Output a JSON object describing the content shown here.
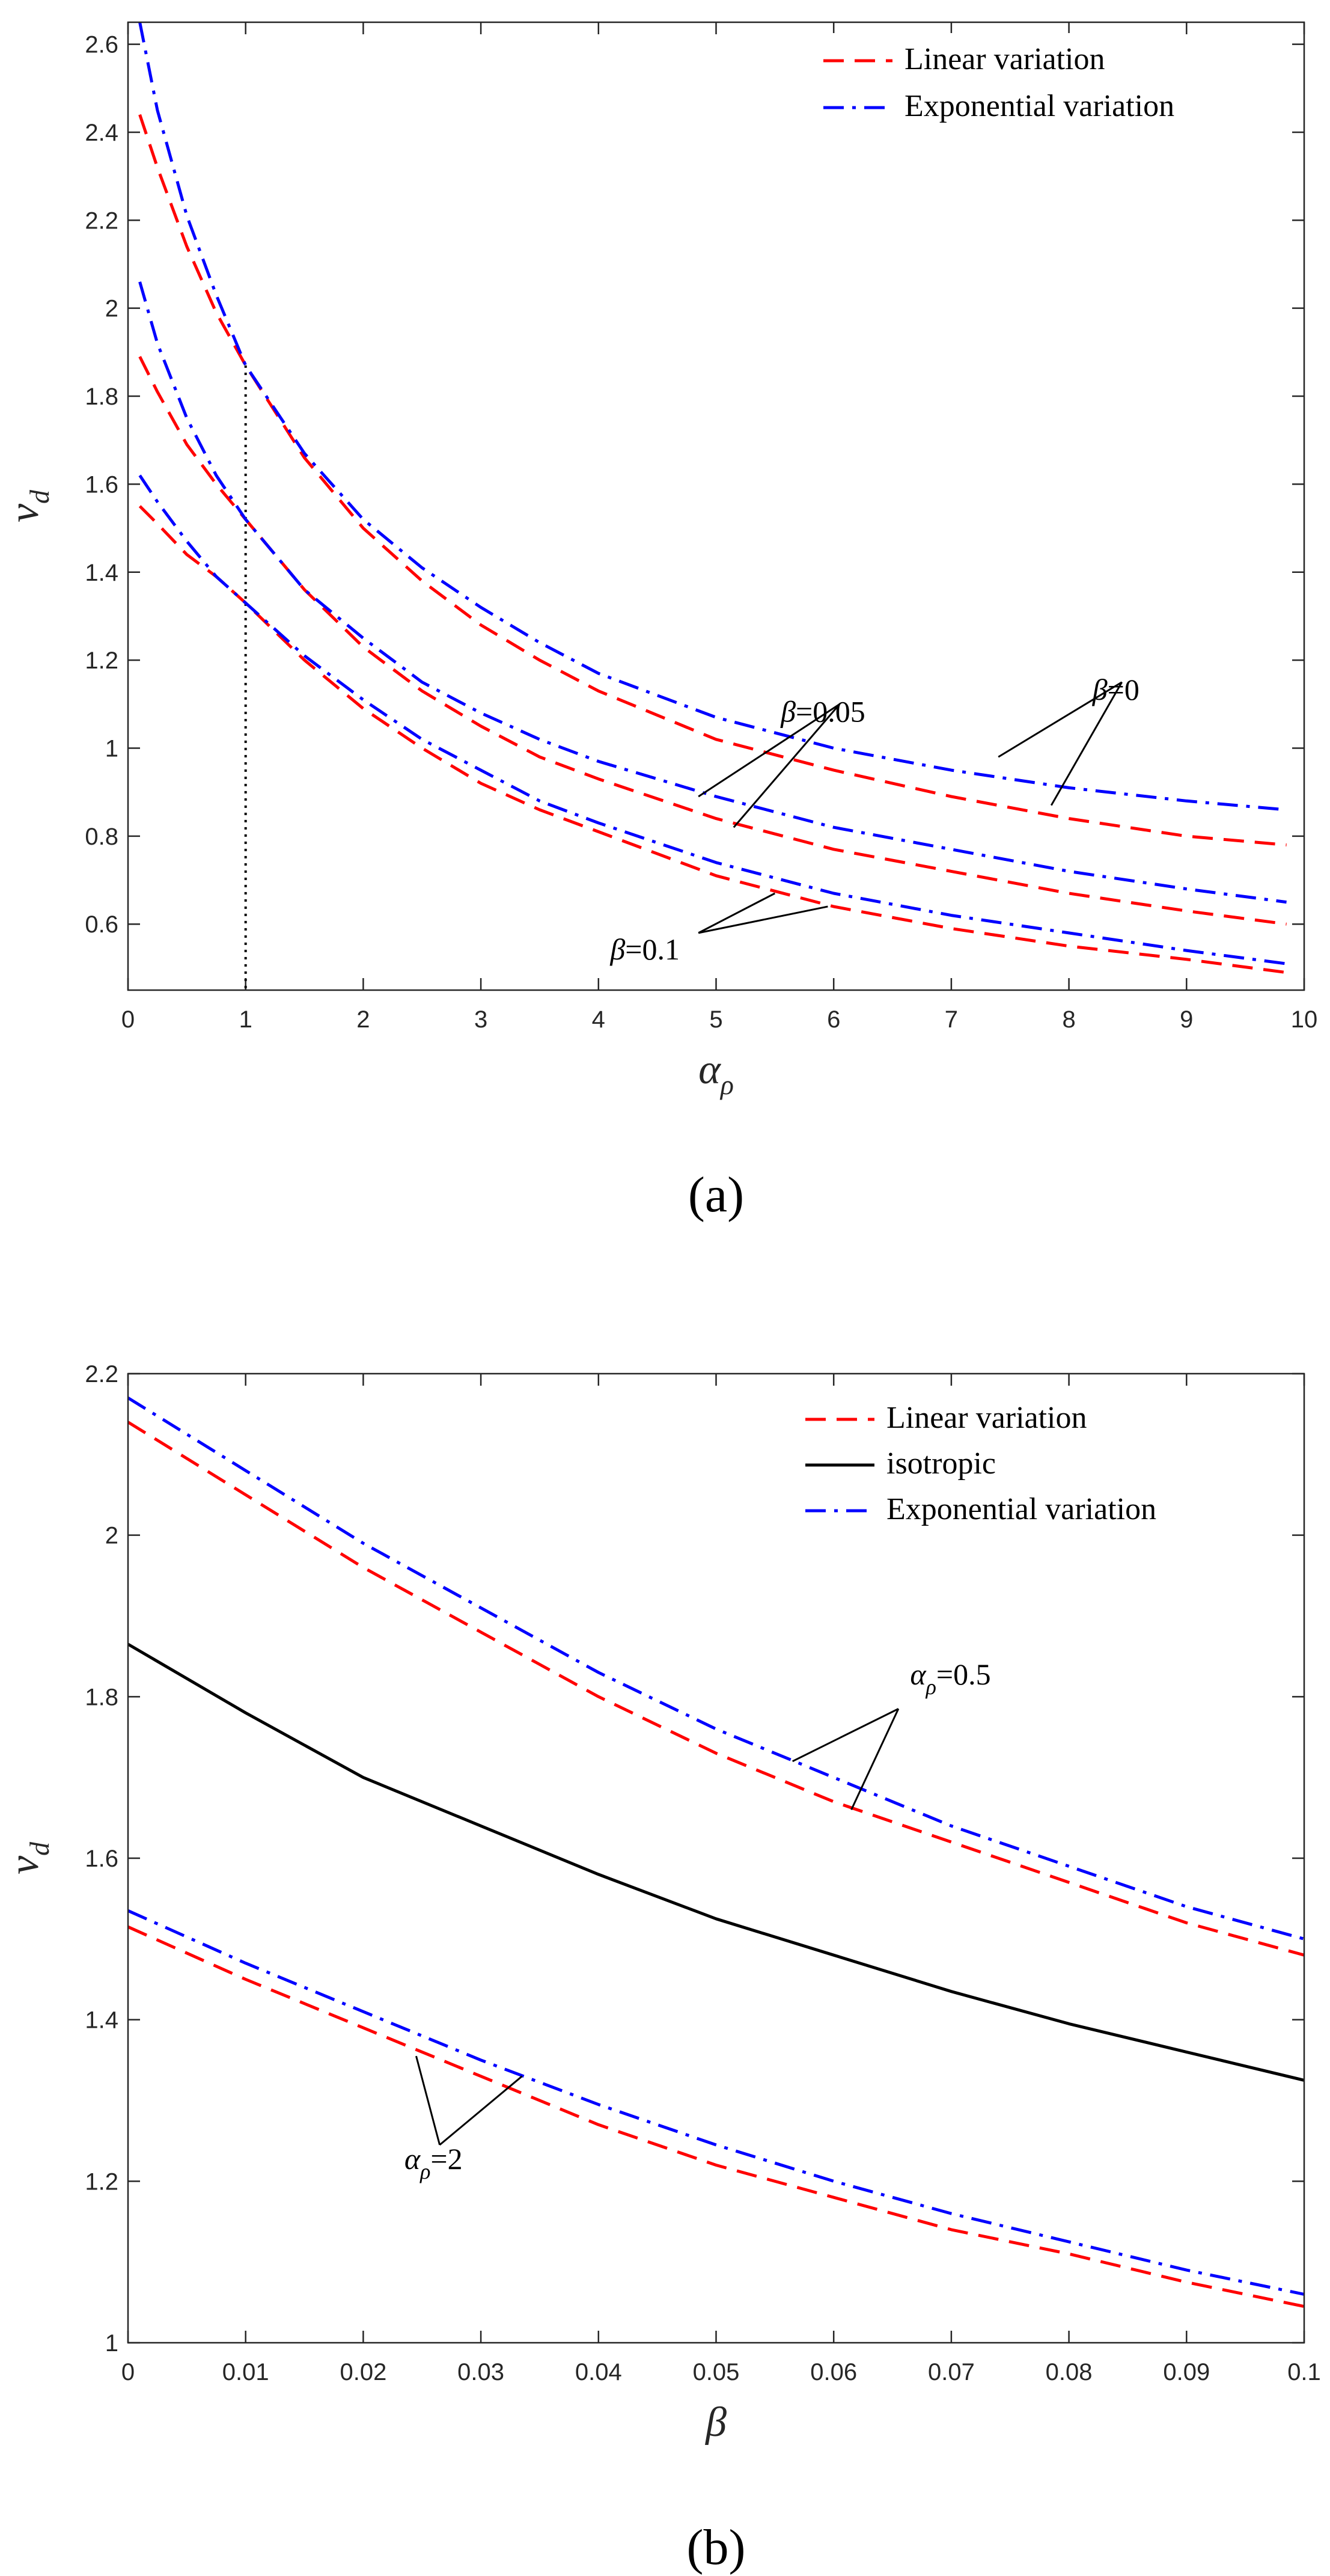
{
  "chart_data": [
    {
      "type": "line",
      "caption": "(a)",
      "xlabel": "α",
      "xlabel_sub": "ρ",
      "ylabel": "v",
      "ylabel_sub": "d",
      "xlim": [
        0,
        10
      ],
      "ylim": [
        0.45,
        2.65
      ],
      "xticks": [
        0,
        1,
        2,
        3,
        4,
        5,
        6,
        7,
        8,
        9,
        10
      ],
      "xtick_labels": [
        "0",
        "1",
        "2",
        "3",
        "4",
        "5",
        "6",
        "7",
        "8",
        "9",
        "10"
      ],
      "yticks": [
        0.6,
        0.8,
        1.0,
        1.2,
        1.4,
        1.6,
        1.8,
        2.0,
        2.2,
        2.4,
        2.6
      ],
      "ytick_labels": [
        "0.6",
        "0.8",
        "1",
        "1.2",
        "1.4",
        "1.6",
        "1.8",
        "2",
        "2.2",
        "2.4",
        "2.6"
      ],
      "vline_x": 1,
      "legend": [
        {
          "label": "Linear variation",
          "color": "#ff0000",
          "style": "dashed"
        },
        {
          "label": "Exponential variation",
          "color": "#0000ff",
          "style": "dashdot"
        }
      ],
      "x": [
        0.1,
        0.25,
        0.5,
        0.75,
        1,
        1.5,
        2,
        2.5,
        3,
        3.5,
        4,
        5,
        6,
        7,
        8,
        9,
        9.85
      ],
      "series": [
        {
          "name": "Linear variation, β=0",
          "color": "#ff0000",
          "style": "dashed",
          "values": [
            2.44,
            2.32,
            2.14,
            1.99,
            1.87,
            1.66,
            1.5,
            1.38,
            1.28,
            1.2,
            1.13,
            1.02,
            0.95,
            0.89,
            0.84,
            0.8,
            0.78
          ]
        },
        {
          "name": "Exponential variation, β=0",
          "color": "#0000ff",
          "style": "dashdot",
          "values": [
            2.65,
            2.45,
            2.21,
            2.03,
            1.87,
            1.67,
            1.52,
            1.41,
            1.32,
            1.24,
            1.17,
            1.07,
            1.0,
            0.95,
            0.91,
            0.88,
            0.86
          ]
        },
        {
          "name": "Linear variation, β=0.05",
          "color": "#ff0000",
          "style": "dashed",
          "values": [
            1.89,
            1.81,
            1.69,
            1.6,
            1.52,
            1.36,
            1.23,
            1.13,
            1.05,
            0.98,
            0.93,
            0.84,
            0.77,
            0.72,
            0.67,
            0.63,
            0.6
          ]
        },
        {
          "name": "Exponential variation, β=0.05",
          "color": "#0000ff",
          "style": "dashdot",
          "values": [
            2.06,
            1.92,
            1.75,
            1.62,
            1.52,
            1.36,
            1.25,
            1.15,
            1.08,
            1.02,
            0.97,
            0.89,
            0.82,
            0.77,
            0.72,
            0.68,
            0.65
          ]
        },
        {
          "name": "Linear variation, β=0.1",
          "color": "#ff0000",
          "style": "dashed",
          "values": [
            1.55,
            1.51,
            1.44,
            1.39,
            1.33,
            1.2,
            1.09,
            1.0,
            0.92,
            0.86,
            0.81,
            0.71,
            0.64,
            0.59,
            0.55,
            0.52,
            0.49
          ]
        },
        {
          "name": "Exponential variation, β=0.1",
          "color": "#0000ff",
          "style": "dashdot",
          "values": [
            1.62,
            1.56,
            1.47,
            1.39,
            1.33,
            1.21,
            1.11,
            1.02,
            0.95,
            0.88,
            0.83,
            0.74,
            0.67,
            0.62,
            0.58,
            0.54,
            0.51
          ]
        }
      ],
      "annotations": [
        {
          "var": "β",
          "text": "=0.05",
          "at": [
            5.55,
            1.06
          ],
          "targets": [
            [
              4.85,
              0.89
            ],
            [
              5.15,
              0.82
            ]
          ],
          "from": [
            6.05,
            1.1
          ]
        },
        {
          "var": "β",
          "text": "=0",
          "at": [
            8.2,
            1.11
          ],
          "targets": [
            [
              7.4,
              0.98
            ],
            [
              7.85,
              0.87
            ]
          ],
          "from": [
            8.45,
            1.15
          ]
        },
        {
          "var": "β",
          "text": "=0.1",
          "at": [
            4.1,
            0.52
          ],
          "targets": [
            [
              5.5,
              0.67
            ],
            [
              5.95,
              0.64
            ]
          ],
          "from": [
            4.85,
            0.58
          ]
        }
      ]
    },
    {
      "type": "line",
      "caption": "(b)",
      "xlabel": "β",
      "xlabel_sub": "",
      "ylabel": "v",
      "ylabel_sub": "d",
      "xlim": [
        0,
        0.1
      ],
      "ylim": [
        1,
        2.2
      ],
      "xticks": [
        0,
        0.01,
        0.02,
        0.03,
        0.04,
        0.05,
        0.06,
        0.07,
        0.08,
        0.09,
        0.1
      ],
      "xtick_labels": [
        "0",
        "0.01",
        "0.02",
        "0.03",
        "0.04",
        "0.05",
        "0.06",
        "0.07",
        "0.08",
        "0.09",
        "0.1"
      ],
      "yticks": [
        1.0,
        1.2,
        1.4,
        1.6,
        1.8,
        2.0,
        2.2
      ],
      "ytick_labels": [
        "1",
        "1.2",
        "1.4",
        "1.6",
        "1.8",
        "2",
        "2.2"
      ],
      "legend": [
        {
          "label": "Linear variation",
          "color": "#ff0000",
          "style": "dashed"
        },
        {
          "label": "isotropic",
          "color": "#000000",
          "style": "solid"
        },
        {
          "label": "Exponential variation",
          "color": "#0000ff",
          "style": "dashdot"
        }
      ],
      "x": [
        0,
        0.01,
        0.02,
        0.03,
        0.04,
        0.05,
        0.06,
        0.07,
        0.08,
        0.09,
        0.1
      ],
      "series": [
        {
          "name": "Linear variation, αρ=0.5",
          "color": "#ff0000",
          "style": "dashed",
          "values": [
            2.14,
            2.05,
            1.96,
            1.88,
            1.8,
            1.73,
            1.67,
            1.62,
            1.57,
            1.52,
            1.48
          ]
        },
        {
          "name": "Exponential variation, αρ=0.5",
          "color": "#0000ff",
          "style": "dashdot",
          "values": [
            2.17,
            2.08,
            1.99,
            1.91,
            1.83,
            1.76,
            1.7,
            1.64,
            1.59,
            1.54,
            1.5
          ]
        },
        {
          "name": "isotropic",
          "color": "#000000",
          "style": "solid",
          "values": [
            1.865,
            1.78,
            1.7,
            1.64,
            1.58,
            1.525,
            1.48,
            1.435,
            1.395,
            1.36,
            1.325
          ]
        },
        {
          "name": "Linear variation, αρ=2",
          "color": "#ff0000",
          "style": "dashed",
          "values": [
            1.515,
            1.45,
            1.39,
            1.33,
            1.27,
            1.22,
            1.18,
            1.14,
            1.11,
            1.075,
            1.045
          ]
        },
        {
          "name": "Exponential variation, αρ=2",
          "color": "#0000ff",
          "style": "dashdot",
          "values": [
            1.535,
            1.47,
            1.41,
            1.35,
            1.295,
            1.245,
            1.2,
            1.16,
            1.125,
            1.09,
            1.06
          ]
        }
      ],
      "annotations": [
        {
          "var": "α",
          "sub": "ρ",
          "text": "=0.5",
          "at": [
            0.0665,
            1.815
          ],
          "targets": [
            [
              0.0565,
              1.72
            ],
            [
              0.0615,
              1.66
            ]
          ],
          "from": [
            0.0655,
            1.785
          ]
        },
        {
          "var": "α",
          "sub": "ρ",
          "text": "=2",
          "at": [
            0.0235,
            1.215
          ],
          "targets": [
            [
              0.0245,
              1.355
            ],
            [
              0.0335,
              1.33
            ]
          ],
          "from": [
            0.0265,
            1.245
          ]
        }
      ]
    }
  ]
}
